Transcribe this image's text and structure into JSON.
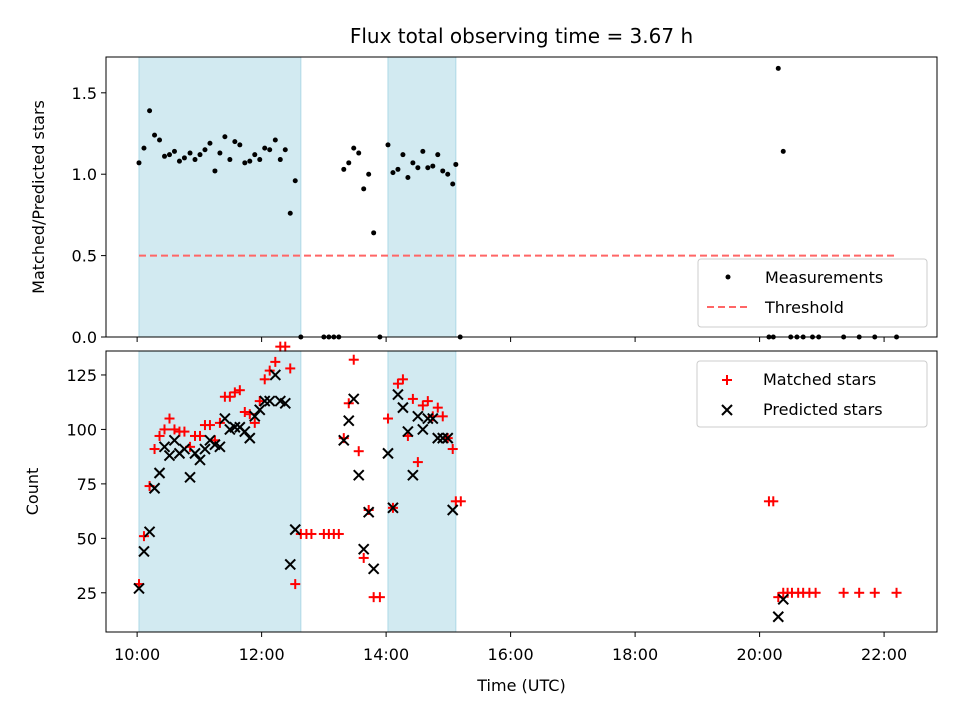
{
  "title": "Flux total observing time = 3.67 h",
  "colors": {
    "shade": "#add8e6",
    "measure": "#000000",
    "threshold": "#ff6666",
    "matched": "#ff0000",
    "predicted": "#000000"
  },
  "shaded_intervals_hours": [
    [
      10.03,
      12.63
    ],
    [
      14.03,
      15.12
    ]
  ],
  "chart_data": [
    {
      "type": "scatter",
      "ylabel": "Matched/Predicted stars",
      "xlim_hours": [
        9.5,
        22.85
      ],
      "ylim": [
        0,
        1.72
      ],
      "yticks": [
        0.0,
        0.5,
        1.0,
        1.5
      ],
      "ytick_labels": [
        "0.0",
        "0.5",
        "1.0",
        "1.5"
      ],
      "threshold": 0.5,
      "threshold_span_hours": [
        10.03,
        22.2
      ],
      "legend": {
        "position": "lower right",
        "measurements": "Measurements",
        "threshold": "Threshold"
      },
      "series": [
        {
          "name": "Measurements",
          "points": [
            [
              10.03,
              1.07
            ],
            [
              10.11,
              1.16
            ],
            [
              10.2,
              1.39
            ],
            [
              10.28,
              1.24
            ],
            [
              10.36,
              1.21
            ],
            [
              10.44,
              1.11
            ],
            [
              10.52,
              1.12
            ],
            [
              10.6,
              1.14
            ],
            [
              10.68,
              1.08
            ],
            [
              10.76,
              1.1
            ],
            [
              10.85,
              1.13
            ],
            [
              10.93,
              1.09
            ],
            [
              11.01,
              1.12
            ],
            [
              11.09,
              1.15
            ],
            [
              11.17,
              1.19
            ],
            [
              11.25,
              1.02
            ],
            [
              11.33,
              1.13
            ],
            [
              11.41,
              1.23
            ],
            [
              11.49,
              1.09
            ],
            [
              11.57,
              1.2
            ],
            [
              11.65,
              1.18
            ],
            [
              11.73,
              1.07
            ],
            [
              11.81,
              1.08
            ],
            [
              11.89,
              1.12
            ],
            [
              11.97,
              1.09
            ],
            [
              12.05,
              1.16
            ],
            [
              12.13,
              1.15
            ],
            [
              12.22,
              1.21
            ],
            [
              12.3,
              1.09
            ],
            [
              12.38,
              1.15
            ],
            [
              12.46,
              0.76
            ],
            [
              12.54,
              0.96
            ],
            [
              12.63,
              0.0
            ],
            [
              13.0,
              0.0
            ],
            [
              13.08,
              0.0
            ],
            [
              13.16,
              0.0
            ],
            [
              13.24,
              0.0
            ],
            [
              13.32,
              1.03
            ],
            [
              13.4,
              1.07
            ],
            [
              13.48,
              1.16
            ],
            [
              13.56,
              1.13
            ],
            [
              13.64,
              0.91
            ],
            [
              13.72,
              1.0
            ],
            [
              13.8,
              0.64
            ],
            [
              13.9,
              0.0
            ],
            [
              14.03,
              1.18
            ],
            [
              14.11,
              1.01
            ],
            [
              14.19,
              1.03
            ],
            [
              14.27,
              1.12
            ],
            [
              14.35,
              0.98
            ],
            [
              14.43,
              1.07
            ],
            [
              14.51,
              1.04
            ],
            [
              14.59,
              1.14
            ],
            [
              14.67,
              1.04
            ],
            [
              14.75,
              1.05
            ],
            [
              14.83,
              1.12
            ],
            [
              14.91,
              1.02
            ],
            [
              14.99,
              1.0
            ],
            [
              15.07,
              0.94
            ],
            [
              15.12,
              1.06
            ],
            [
              15.19,
              0.0
            ],
            [
              20.15,
              0.0
            ],
            [
              20.22,
              0.0
            ],
            [
              20.3,
              1.65
            ],
            [
              20.38,
              1.14
            ],
            [
              20.5,
              0.0
            ],
            [
              20.6,
              0.0
            ],
            [
              20.7,
              0.0
            ],
            [
              20.85,
              0.0
            ],
            [
              20.95,
              0.0
            ],
            [
              21.35,
              0.0
            ],
            [
              21.6,
              0.0
            ],
            [
              21.85,
              0.0
            ],
            [
              22.2,
              0.0
            ]
          ]
        }
      ]
    },
    {
      "type": "scatter",
      "ylabel": "Count",
      "xlabel": "Time (UTC)",
      "xlim_hours": [
        9.5,
        22.85
      ],
      "ylim": [
        7,
        136
      ],
      "yticks": [
        25,
        50,
        75,
        100,
        125
      ],
      "ytick_labels": [
        "25",
        "50",
        "75",
        "100",
        "125"
      ],
      "xticks_hours": [
        10,
        12,
        14,
        16,
        18,
        20,
        22
      ],
      "xtick_labels": [
        "10:00",
        "12:00",
        "14:00",
        "16:00",
        "18:00",
        "20:00",
        "22:00"
      ],
      "legend": {
        "position": "upper right",
        "matched": "Matched stars",
        "predicted": "Predicted stars"
      },
      "series": [
        {
          "name": "Matched stars",
          "points": [
            [
              10.03,
              29
            ],
            [
              10.11,
              51
            ],
            [
              10.2,
              74
            ],
            [
              10.28,
              91
            ],
            [
              10.36,
              97
            ],
            [
              10.44,
              100
            ],
            [
              10.52,
              105
            ],
            [
              10.6,
              100
            ],
            [
              10.68,
              99
            ],
            [
              10.76,
              99
            ],
            [
              10.85,
              92
            ],
            [
              10.93,
              97
            ],
            [
              11.01,
              97
            ],
            [
              11.09,
              102
            ],
            [
              11.17,
              102
            ],
            [
              11.25,
              95
            ],
            [
              11.33,
              103
            ],
            [
              11.41,
              115
            ],
            [
              11.49,
              115
            ],
            [
              11.57,
              117
            ],
            [
              11.65,
              118
            ],
            [
              11.73,
              108
            ],
            [
              11.81,
              107
            ],
            [
              11.89,
              103
            ],
            [
              11.97,
              113
            ],
            [
              12.05,
              123
            ],
            [
              12.13,
              127
            ],
            [
              12.22,
              131
            ],
            [
              12.3,
              138
            ],
            [
              12.38,
              138
            ],
            [
              12.46,
              128
            ],
            [
              12.54,
              29
            ],
            [
              12.63,
              52
            ],
            [
              12.72,
              52
            ],
            [
              12.8,
              52
            ],
            [
              13.0,
              52
            ],
            [
              13.08,
              52
            ],
            [
              13.16,
              52
            ],
            [
              13.24,
              52
            ],
            [
              13.32,
              96
            ],
            [
              13.4,
              112
            ],
            [
              13.48,
              132
            ],
            [
              13.56,
              90
            ],
            [
              13.64,
              41
            ],
            [
              13.72,
              63
            ],
            [
              13.8,
              23
            ],
            [
              13.9,
              23
            ],
            [
              14.03,
              105
            ],
            [
              14.11,
              64
            ],
            [
              14.19,
              121
            ],
            [
              14.27,
              123
            ],
            [
              14.35,
              97
            ],
            [
              14.43,
              114
            ],
            [
              14.51,
              85
            ],
            [
              14.59,
              111
            ],
            [
              14.67,
              113
            ],
            [
              14.75,
              106
            ],
            [
              14.83,
              110
            ],
            [
              14.91,
              106
            ],
            [
              14.99,
              96
            ],
            [
              15.07,
              91
            ],
            [
              15.12,
              67
            ],
            [
              15.2,
              67
            ],
            [
              20.15,
              67
            ],
            [
              20.22,
              67
            ],
            [
              20.3,
              23
            ],
            [
              20.38,
              25
            ],
            [
              20.45,
              25
            ],
            [
              20.52,
              25
            ],
            [
              20.62,
              25
            ],
            [
              20.7,
              25
            ],
            [
              20.8,
              25
            ],
            [
              20.9,
              25
            ],
            [
              21.35,
              25
            ],
            [
              21.6,
              25
            ],
            [
              21.85,
              25
            ],
            [
              22.2,
              25
            ]
          ]
        },
        {
          "name": "Predicted stars",
          "points": [
            [
              10.03,
              27
            ],
            [
              10.11,
              44
            ],
            [
              10.2,
              53
            ],
            [
              10.28,
              73
            ],
            [
              10.36,
              80
            ],
            [
              10.44,
              92
            ],
            [
              10.52,
              88
            ],
            [
              10.6,
              95
            ],
            [
              10.68,
              89
            ],
            [
              10.76,
              91
            ],
            [
              10.85,
              78
            ],
            [
              10.93,
              89
            ],
            [
              11.01,
              86
            ],
            [
              11.09,
              91
            ],
            [
              11.17,
              95
            ],
            [
              11.25,
              93
            ],
            [
              11.33,
              92
            ],
            [
              11.41,
              105
            ],
            [
              11.49,
              100
            ],
            [
              11.57,
              101
            ],
            [
              11.65,
              101
            ],
            [
              11.73,
              99
            ],
            [
              11.81,
              96
            ],
            [
              11.89,
              106
            ],
            [
              11.97,
              109
            ],
            [
              12.05,
              113
            ],
            [
              12.13,
              113
            ],
            [
              12.22,
              125
            ],
            [
              12.3,
              113
            ],
            [
              12.38,
              112
            ],
            [
              12.46,
              38
            ],
            [
              12.54,
              54
            ],
            [
              13.32,
              95
            ],
            [
              13.4,
              104
            ],
            [
              13.48,
              114
            ],
            [
              13.56,
              79
            ],
            [
              13.64,
              45
            ],
            [
              13.72,
              62
            ],
            [
              13.8,
              36
            ],
            [
              14.03,
              89
            ],
            [
              14.11,
              64
            ],
            [
              14.19,
              116
            ],
            [
              14.27,
              110
            ],
            [
              14.35,
              99
            ],
            [
              14.43,
              79
            ],
            [
              14.51,
              106
            ],
            [
              14.59,
              100
            ],
            [
              14.67,
              105
            ],
            [
              14.75,
              105
            ],
            [
              14.83,
              96
            ],
            [
              14.91,
              96
            ],
            [
              14.99,
              96
            ],
            [
              15.07,
              63
            ],
            [
              20.3,
              14
            ],
            [
              20.38,
              22
            ]
          ]
        }
      ]
    }
  ]
}
